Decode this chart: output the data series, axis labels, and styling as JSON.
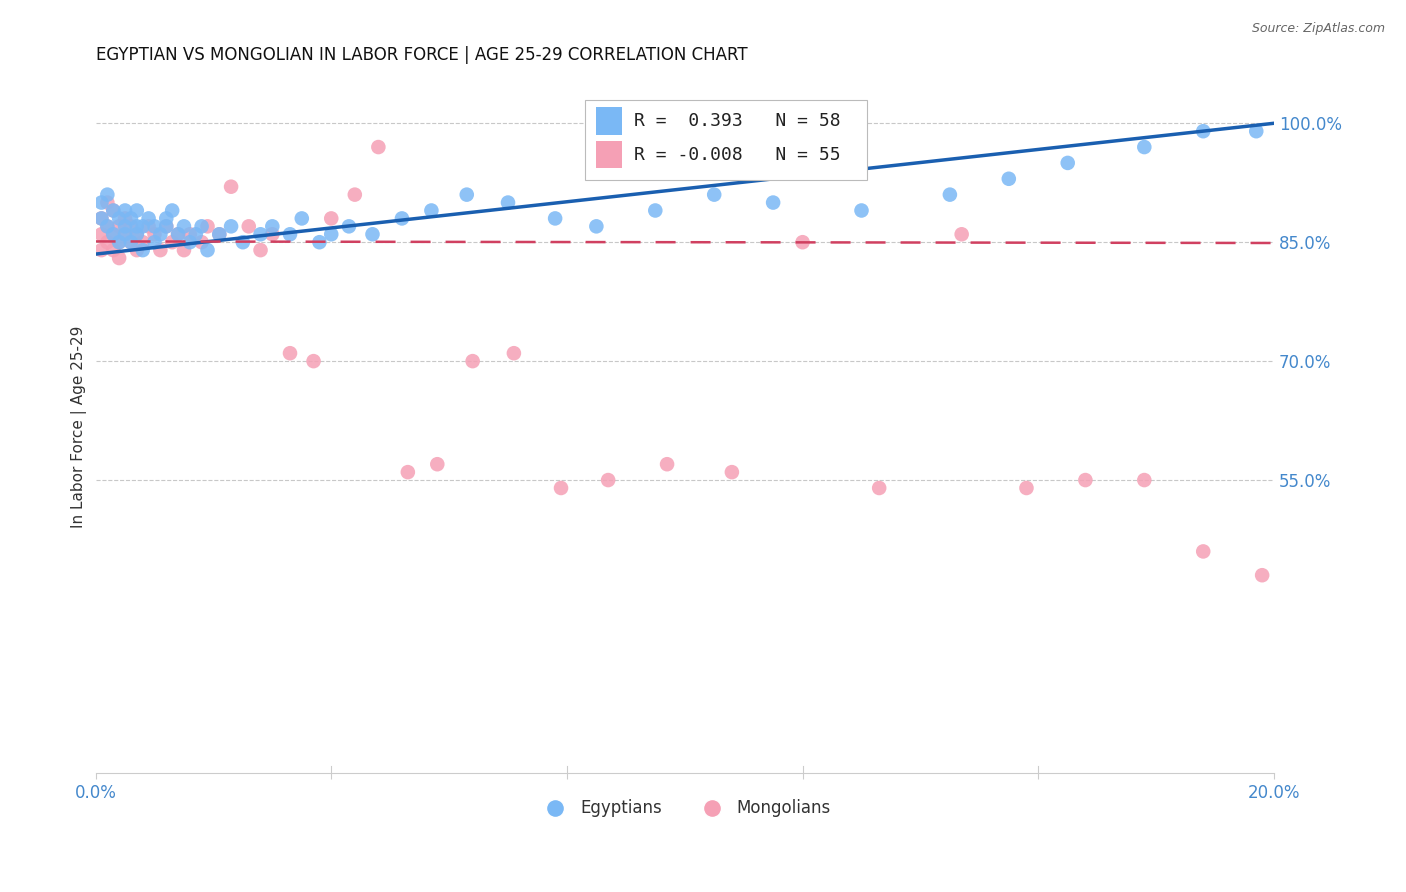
{
  "title": "EGYPTIAN VS MONGOLIAN IN LABOR FORCE | AGE 25-29 CORRELATION CHART",
  "source": "Source: ZipAtlas.com",
  "ylabel": "In Labor Force | Age 25-29",
  "xmin": 0.0,
  "xmax": 0.2,
  "ymin": 0.18,
  "ymax": 1.055,
  "yticks": [
    0.55,
    0.7,
    0.85,
    1.0
  ],
  "ytick_labels": [
    "55.0%",
    "70.0%",
    "85.0%",
    "100.0%"
  ],
  "legend_r_egyptian": " 0.393",
  "legend_n_egyptian": "58",
  "legend_r_mongolian": "-0.008",
  "legend_n_mongolian": "55",
  "egyptian_color": "#7ab8f5",
  "mongolian_color": "#f5a0b5",
  "trendline_egyptian_color": "#1a5fb0",
  "trendline_mongolian_color": "#d04060",
  "background_color": "#ffffff",
  "grid_color": "#c8c8c8",
  "axis_label_color": "#4488cc",
  "egyptians_x": [
    0.001,
    0.001,
    0.002,
    0.002,
    0.003,
    0.003,
    0.004,
    0.004,
    0.005,
    0.005,
    0.005,
    0.006,
    0.006,
    0.007,
    0.007,
    0.007,
    0.008,
    0.008,
    0.009,
    0.01,
    0.01,
    0.011,
    0.012,
    0.012,
    0.013,
    0.014,
    0.015,
    0.016,
    0.017,
    0.018,
    0.019,
    0.021,
    0.023,
    0.025,
    0.028,
    0.03,
    0.033,
    0.035,
    0.038,
    0.04,
    0.043,
    0.047,
    0.052,
    0.057,
    0.063,
    0.07,
    0.078,
    0.085,
    0.095,
    0.105,
    0.115,
    0.13,
    0.145,
    0.155,
    0.165,
    0.178,
    0.188,
    0.197
  ],
  "egyptians_y": [
    0.88,
    0.9,
    0.87,
    0.91,
    0.86,
    0.89,
    0.85,
    0.88,
    0.86,
    0.89,
    0.87,
    0.85,
    0.88,
    0.86,
    0.89,
    0.87,
    0.84,
    0.87,
    0.88,
    0.85,
    0.87,
    0.86,
    0.88,
    0.87,
    0.89,
    0.86,
    0.87,
    0.85,
    0.86,
    0.87,
    0.84,
    0.86,
    0.87,
    0.85,
    0.86,
    0.87,
    0.86,
    0.88,
    0.85,
    0.86,
    0.87,
    0.86,
    0.88,
    0.89,
    0.91,
    0.9,
    0.88,
    0.87,
    0.89,
    0.91,
    0.9,
    0.89,
    0.91,
    0.93,
    0.95,
    0.97,
    0.99,
    0.99
  ],
  "mongolians_x": [
    0.001,
    0.001,
    0.001,
    0.002,
    0.002,
    0.002,
    0.003,
    0.003,
    0.003,
    0.004,
    0.004,
    0.004,
    0.005,
    0.005,
    0.006,
    0.006,
    0.007,
    0.007,
    0.008,
    0.009,
    0.01,
    0.011,
    0.012,
    0.013,
    0.014,
    0.015,
    0.016,
    0.018,
    0.019,
    0.021,
    0.023,
    0.026,
    0.028,
    0.03,
    0.033,
    0.037,
    0.04,
    0.044,
    0.048,
    0.053,
    0.058,
    0.064,
    0.071,
    0.079,
    0.087,
    0.097,
    0.108,
    0.12,
    0.133,
    0.147,
    0.158,
    0.168,
    0.178,
    0.188,
    0.198
  ],
  "mongolians_y": [
    0.88,
    0.86,
    0.84,
    0.9,
    0.87,
    0.85,
    0.89,
    0.86,
    0.84,
    0.87,
    0.85,
    0.83,
    0.88,
    0.86,
    0.87,
    0.85,
    0.86,
    0.84,
    0.85,
    0.87,
    0.86,
    0.84,
    0.87,
    0.85,
    0.86,
    0.84,
    0.86,
    0.85,
    0.87,
    0.86,
    0.92,
    0.87,
    0.84,
    0.86,
    0.71,
    0.7,
    0.88,
    0.91,
    0.97,
    0.56,
    0.57,
    0.7,
    0.71,
    0.54,
    0.55,
    0.57,
    0.56,
    0.85,
    0.54,
    0.86,
    0.54,
    0.55,
    0.55,
    0.46,
    0.43
  ],
  "eg_trend_x0": 0.0,
  "eg_trend_y0": 0.835,
  "eg_trend_x1": 0.2,
  "eg_trend_y1": 1.0,
  "mo_trend_x0": 0.0,
  "mo_trend_y0": 0.851,
  "mo_trend_x1": 0.2,
  "mo_trend_y1": 0.849
}
